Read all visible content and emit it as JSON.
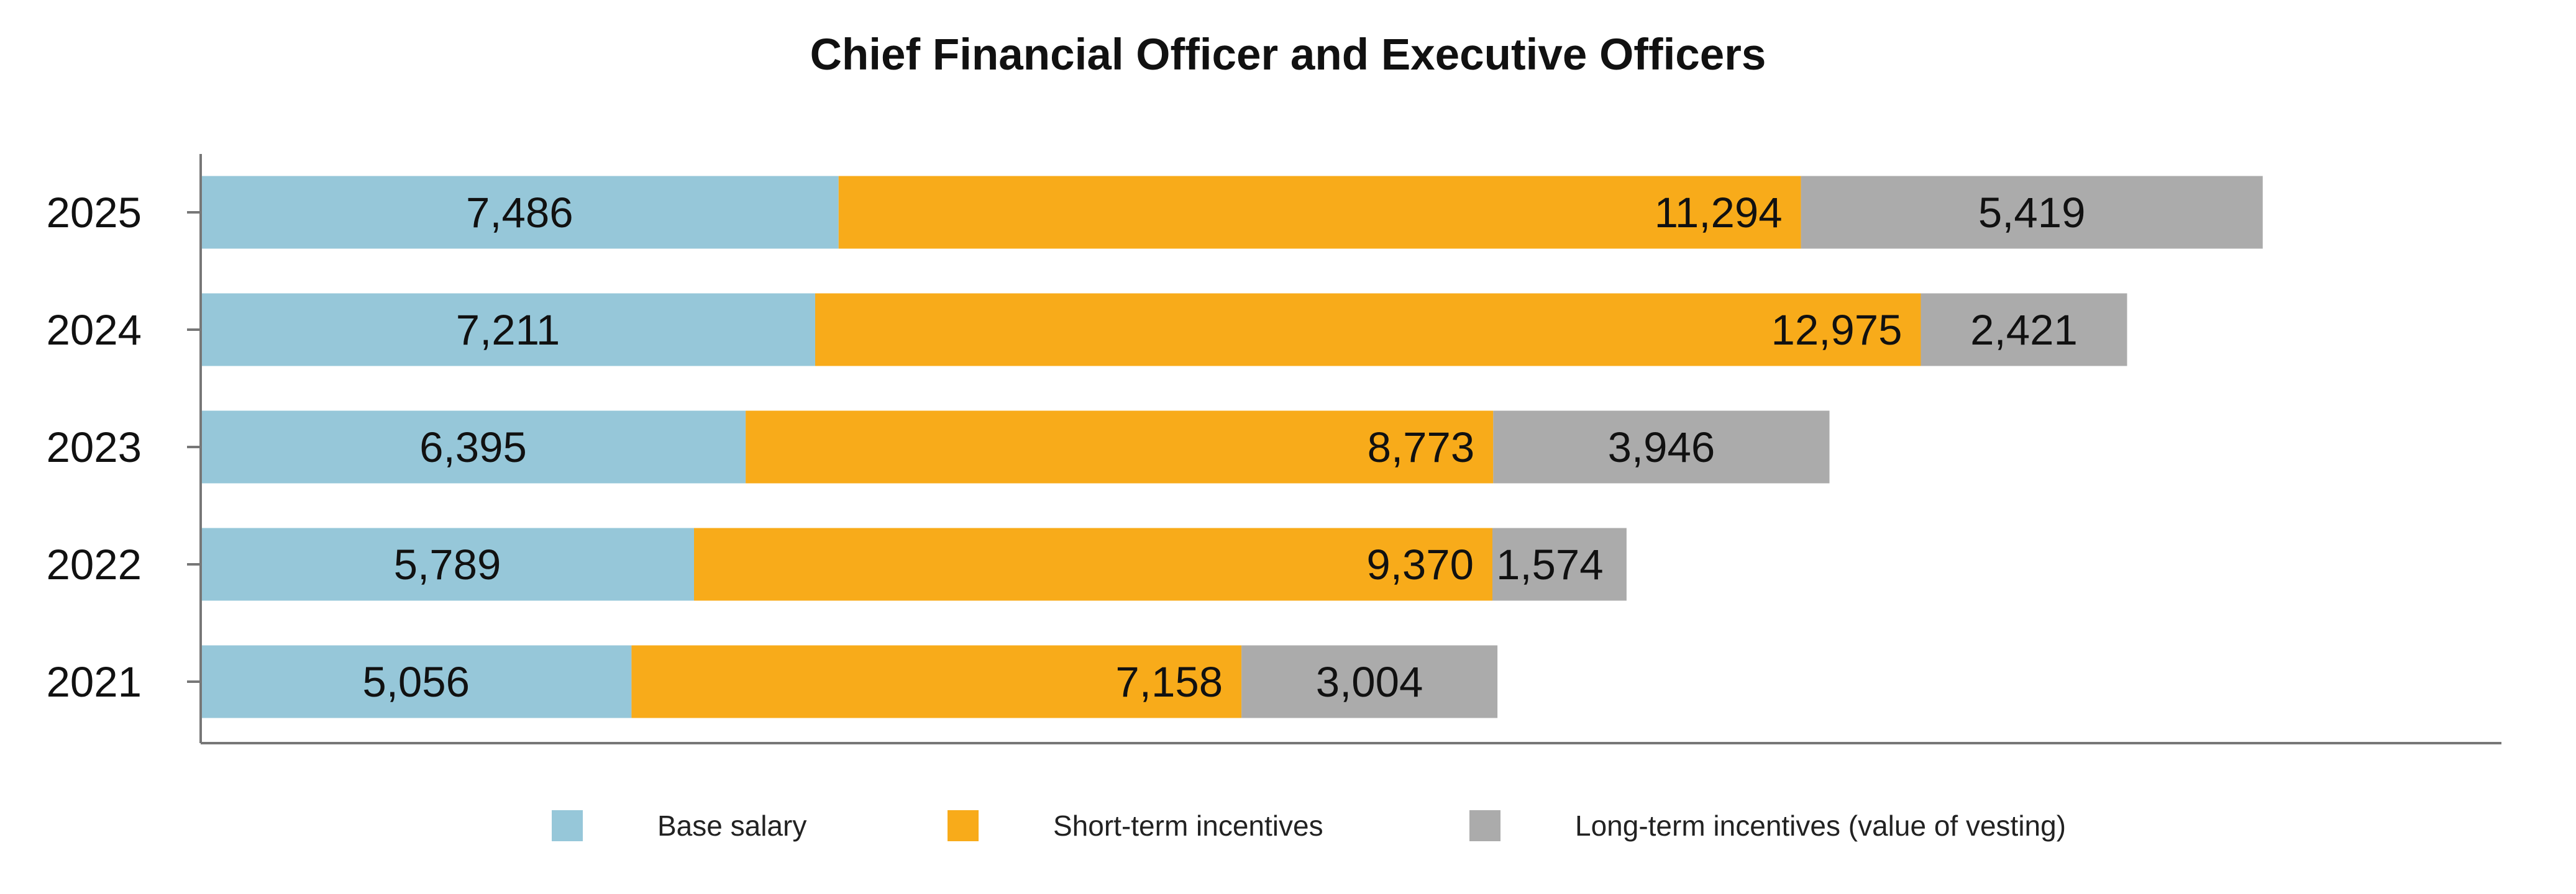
{
  "chart_data": {
    "type": "bar",
    "orientation": "horizontal",
    "stacked": true,
    "title": "Chief Financial Officer and Executive Officers",
    "categories": [
      "2025",
      "2024",
      "2023",
      "2022",
      "2021"
    ],
    "series": [
      {
        "name": "Base salary",
        "color": "#96C7D9",
        "values": [
          7486,
          7211,
          6395,
          5789,
          5056
        ],
        "labels": [
          "7,486",
          "7,211",
          "6,395",
          "5,789",
          "5,056"
        ]
      },
      {
        "name": "Short-term incentives",
        "color": "#F8AB1A",
        "values": [
          11294,
          12975,
          8773,
          9370,
          7158
        ],
        "labels": [
          "11,294",
          "12,975",
          "8,773",
          "9,370",
          "7,158"
        ]
      },
      {
        "name": "Long-term incentives (value of vesting)",
        "color": "#ABABAB",
        "values": [
          5419,
          2421,
          3946,
          1574,
          3004
        ],
        "labels": [
          "5,419",
          "2,421",
          "3,946",
          "1,574",
          "3,004"
        ]
      }
    ],
    "xlim": [
      0,
      27000
    ],
    "grid": false,
    "legend_position": "bottom"
  }
}
